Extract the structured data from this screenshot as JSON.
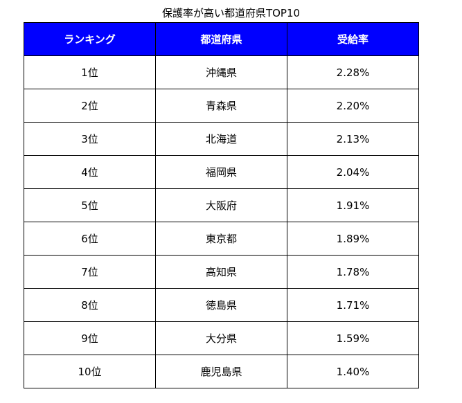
{
  "title": "保護率が高い都道府県TOP10",
  "colors": {
    "header_background": "#0000ff",
    "header_text": "#ffffff",
    "border": "#000000"
  },
  "table": {
    "headers": [
      "ランキング",
      "都道府県",
      "受給率"
    ],
    "rows": [
      [
        "1位",
        "沖縄県",
        "2.28%"
      ],
      [
        "2位",
        "青森県",
        "2.20%"
      ],
      [
        "3位",
        "北海道",
        "2.13%"
      ],
      [
        "4位",
        "福岡県",
        "2.04%"
      ],
      [
        "5位",
        "大阪府",
        "1.91%"
      ],
      [
        "6位",
        "東京都",
        "1.89%"
      ],
      [
        "7位",
        "高知県",
        "1.78%"
      ],
      [
        "8位",
        "徳島県",
        "1.71%"
      ],
      [
        "9位",
        "大分県",
        "1.59%"
      ],
      [
        "10位",
        "鹿児島県",
        "1.40%"
      ]
    ]
  },
  "chart_data": {
    "type": "table",
    "title": "保護率が高い都道府県TOP10",
    "columns": [
      "ランキング",
      "都道府県",
      "受給率"
    ],
    "categories": [
      "沖縄県",
      "青森県",
      "北海道",
      "福岡県",
      "大阪府",
      "東京都",
      "高知県",
      "徳島県",
      "大分県",
      "鹿児島県"
    ],
    "values": [
      2.28,
      2.2,
      2.13,
      2.04,
      1.91,
      1.89,
      1.78,
      1.71,
      1.59,
      1.4
    ]
  }
}
